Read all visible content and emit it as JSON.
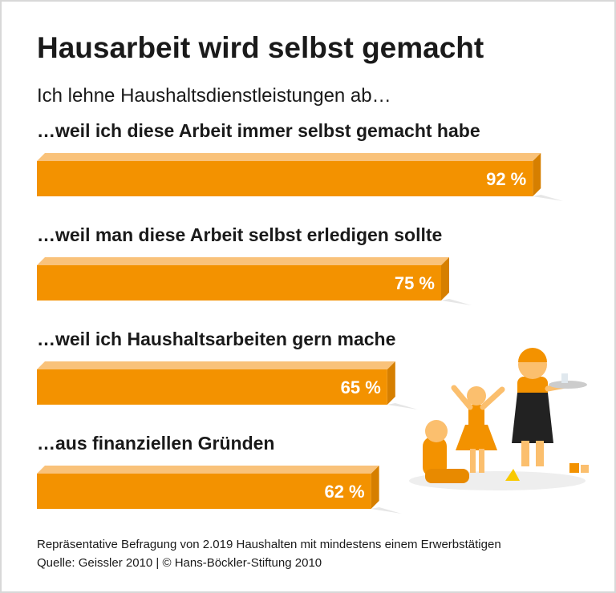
{
  "chart_data": {
    "type": "bar",
    "title": "Hausarbeit wird selbst gemacht",
    "subtitle": "Ich lehne Haushaltsdienstleistungen ab…",
    "categories": [
      "…weil ich diese Arbeit immer selbst gemacht habe",
      "…weil man diese Arbeit selbst erledigen sollte",
      "…weil ich Haushaltsarbeiten gern mache",
      "…aus finanziellen Gründen"
    ],
    "values": [
      92,
      75,
      65,
      62
    ],
    "value_labels": [
      "92 %",
      "75 %",
      "65 %",
      "62 %"
    ],
    "color": "#f39200",
    "notes": [
      "Repräsentative Befragung von 2.019 Haushalten mit mindestens einem Erwerbstätigen",
      "Quelle: Geissler 2010 | © Hans-Böckler-Stiftung 2010"
    ]
  }
}
